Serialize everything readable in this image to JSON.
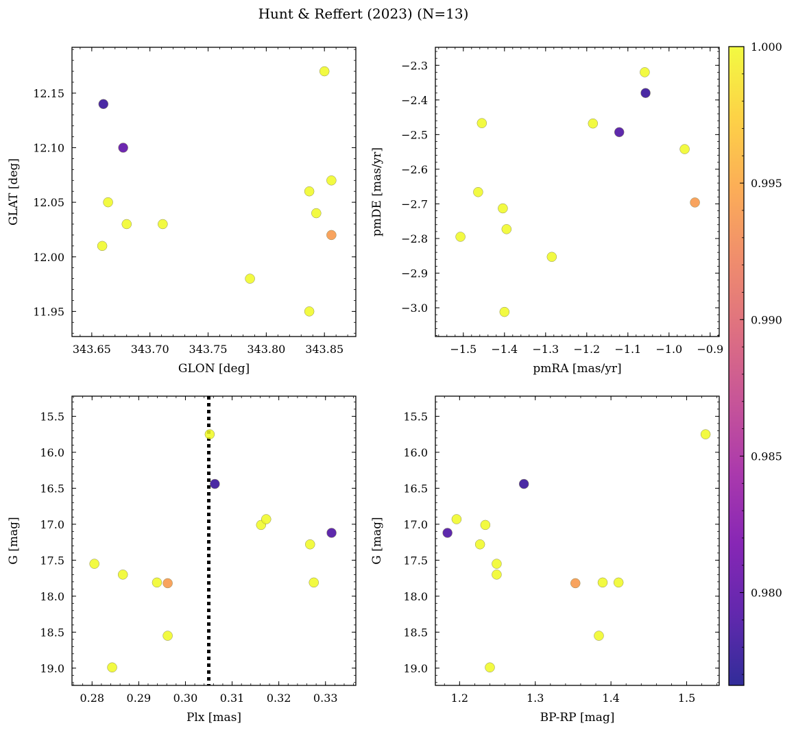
{
  "title": "Hunt & Reffert (2023) (N=13)",
  "colorbar": {
    "range": [
      0.9766,
      1.0
    ],
    "ticks": [
      0.98,
      0.985,
      0.99,
      0.995,
      1.0
    ],
    "tick_labels": [
      "0.980",
      "0.985",
      "0.990",
      "0.995",
      "1.000"
    ],
    "colormap": [
      "#0d0887",
      "#46039f",
      "#7201a8",
      "#9c179e",
      "#bd3786",
      "#d8576b",
      "#ed7953",
      "#fb9f3a",
      "#fdca26",
      "#f0f921"
    ]
  },
  "chart_data": [
    {
      "type": "scatter",
      "panel": "top-left",
      "xlabel": "GLON [deg]",
      "ylabel": "GLAT [deg]",
      "xlim": [
        343.633,
        343.877
      ],
      "ylim": [
        11.927,
        12.192
      ],
      "y_inverted": false,
      "xticks": [
        343.65,
        343.7,
        343.75,
        343.8,
        343.85
      ],
      "xtick_labels": [
        "343.65",
        "343.70",
        "343.75",
        "343.80",
        "343.85"
      ],
      "yticks": [
        11.95,
        12.0,
        12.05,
        12.1,
        12.15
      ],
      "ytick_labels": [
        "11.95",
        "12.00",
        "12.05",
        "12.10",
        "12.15"
      ],
      "x_minor": 0.01,
      "y_minor": 0.01,
      "points": [
        {
          "x": 343.66,
          "y": 12.14,
          "c": 0.978
        },
        {
          "x": 343.677,
          "y": 12.1,
          "c": 0.98
        },
        {
          "x": 343.664,
          "y": 12.05,
          "c": 1.0
        },
        {
          "x": 343.659,
          "y": 12.01,
          "c": 1.0
        },
        {
          "x": 343.68,
          "y": 12.03,
          "c": 1.0
        },
        {
          "x": 343.711,
          "y": 12.03,
          "c": 1.0
        },
        {
          "x": 343.786,
          "y": 11.98,
          "c": 1.0
        },
        {
          "x": 343.837,
          "y": 11.95,
          "c": 1.0
        },
        {
          "x": 343.837,
          "y": 12.06,
          "c": 1.0
        },
        {
          "x": 343.843,
          "y": 12.04,
          "c": 1.0
        },
        {
          "x": 343.85,
          "y": 12.17,
          "c": 1.0
        },
        {
          "x": 343.856,
          "y": 12.07,
          "c": 1.0
        },
        {
          "x": 343.856,
          "y": 12.02,
          "c": 0.994
        }
      ]
    },
    {
      "type": "scatter",
      "panel": "top-right",
      "xlabel": "pmRA [mas/yr]",
      "ylabel": "pmDE [mas/yr]",
      "xlim": [
        -1.568,
        -0.878
      ],
      "ylim": [
        -3.083,
        -2.248
      ],
      "y_inverted": false,
      "xticks": [
        -1.5,
        -1.4,
        -1.3,
        -1.2,
        -1.1,
        -1.0,
        -0.9
      ],
      "xtick_labels": [
        "−1.5",
        "−1.4",
        "−1.3",
        "−1.2",
        "−1.1",
        "−1.0",
        "−0.9"
      ],
      "yticks": [
        -3.0,
        -2.9,
        -2.8,
        -2.7,
        -2.6,
        -2.5,
        -2.4,
        -2.3
      ],
      "ytick_labels": [
        "−3.0",
        "−2.9",
        "−2.8",
        "−2.7",
        "−2.6",
        "−2.5",
        "−2.4",
        "−2.3"
      ],
      "x_minor": 0.02,
      "y_minor": 0.02,
      "points": [
        {
          "x": -1.507,
          "y": -2.795,
          "c": 1.0
        },
        {
          "x": -1.464,
          "y": -2.666,
          "c": 1.0
        },
        {
          "x": -1.455,
          "y": -2.467,
          "c": 1.0
        },
        {
          "x": -1.404,
          "y": -2.713,
          "c": 1.0
        },
        {
          "x": -1.395,
          "y": -2.773,
          "c": 1.0
        },
        {
          "x": -1.4,
          "y": -3.012,
          "c": 1.0
        },
        {
          "x": -1.285,
          "y": -2.853,
          "c": 1.0
        },
        {
          "x": -1.185,
          "y": -2.468,
          "c": 1.0
        },
        {
          "x": -1.121,
          "y": -2.493,
          "c": 0.979
        },
        {
          "x": -1.059,
          "y": -2.32,
          "c": 1.0
        },
        {
          "x": -1.057,
          "y": -2.38,
          "c": 0.978
        },
        {
          "x": -0.962,
          "y": -2.542,
          "c": 1.0
        },
        {
          "x": -0.937,
          "y": -2.696,
          "c": 0.994
        }
      ]
    },
    {
      "type": "scatter",
      "panel": "bottom-left",
      "xlabel": "Plx [mas]",
      "ylabel": "G [mag]",
      "xlim": [
        0.2757,
        0.3365
      ],
      "ylim": [
        19.24,
        15.22
      ],
      "y_inverted": true,
      "xticks": [
        0.28,
        0.29,
        0.3,
        0.31,
        0.32,
        0.33
      ],
      "xtick_labels": [
        "0.28",
        "0.29",
        "0.30",
        "0.31",
        "0.32",
        "0.33"
      ],
      "yticks": [
        15.5,
        16.0,
        16.5,
        17.0,
        17.5,
        18.0,
        18.5,
        19.0
      ],
      "ytick_labels": [
        "15.5",
        "16.0",
        "16.5",
        "17.0",
        "17.5",
        "18.0",
        "18.5",
        "19.0"
      ],
      "x_minor": 0.002,
      "y_minor": 0.1,
      "vline": 0.305,
      "points": [
        {
          "x": 0.2805,
          "y": 17.55,
          "c": 1.0
        },
        {
          "x": 0.2843,
          "y": 18.99,
          "c": 1.0
        },
        {
          "x": 0.2866,
          "y": 17.7,
          "c": 1.0
        },
        {
          "x": 0.2939,
          "y": 17.81,
          "c": 1.0
        },
        {
          "x": 0.2962,
          "y": 17.82,
          "c": 0.994
        },
        {
          "x": 0.2962,
          "y": 18.55,
          "c": 1.0
        },
        {
          "x": 0.3052,
          "y": 15.75,
          "c": 1.0
        },
        {
          "x": 0.3063,
          "y": 16.44,
          "c": 0.978
        },
        {
          "x": 0.3162,
          "y": 17.01,
          "c": 1.0
        },
        {
          "x": 0.3173,
          "y": 16.93,
          "c": 1.0
        },
        {
          "x": 0.3267,
          "y": 17.28,
          "c": 1.0
        },
        {
          "x": 0.3275,
          "y": 17.81,
          "c": 1.0
        },
        {
          "x": 0.3313,
          "y": 17.12,
          "c": 0.979
        }
      ]
    },
    {
      "type": "scatter",
      "panel": "bottom-right",
      "xlabel": "BP-RP [mag]",
      "ylabel": "G [mag]",
      "xlim": [
        1.168,
        1.543
      ],
      "ylim": [
        19.24,
        15.22
      ],
      "y_inverted": true,
      "xticks": [
        1.2,
        1.3,
        1.4,
        1.5
      ],
      "xtick_labels": [
        "1.2",
        "1.3",
        "1.4",
        "1.5"
      ],
      "yticks": [
        15.5,
        16.0,
        16.5,
        17.0,
        17.5,
        18.0,
        18.5,
        19.0
      ],
      "ytick_labels": [
        "15.5",
        "16.0",
        "16.5",
        "17.0",
        "17.5",
        "18.0",
        "18.5",
        "19.0"
      ],
      "x_minor": 0.02,
      "y_minor": 0.1,
      "points": [
        {
          "x": 1.184,
          "y": 17.12,
          "c": 0.979
        },
        {
          "x": 1.196,
          "y": 16.93,
          "c": 1.0
        },
        {
          "x": 1.227,
          "y": 17.28,
          "c": 1.0
        },
        {
          "x": 1.234,
          "y": 17.01,
          "c": 1.0
        },
        {
          "x": 1.24,
          "y": 18.99,
          "c": 1.0
        },
        {
          "x": 1.249,
          "y": 17.55,
          "c": 1.0
        },
        {
          "x": 1.249,
          "y": 17.7,
          "c": 1.0
        },
        {
          "x": 1.285,
          "y": 16.44,
          "c": 0.978
        },
        {
          "x": 1.353,
          "y": 17.82,
          "c": 0.994
        },
        {
          "x": 1.384,
          "y": 18.55,
          "c": 1.0
        },
        {
          "x": 1.389,
          "y": 17.81,
          "c": 1.0
        },
        {
          "x": 1.41,
          "y": 17.81,
          "c": 1.0
        },
        {
          "x": 1.525,
          "y": 15.75,
          "c": 1.0
        }
      ]
    }
  ]
}
